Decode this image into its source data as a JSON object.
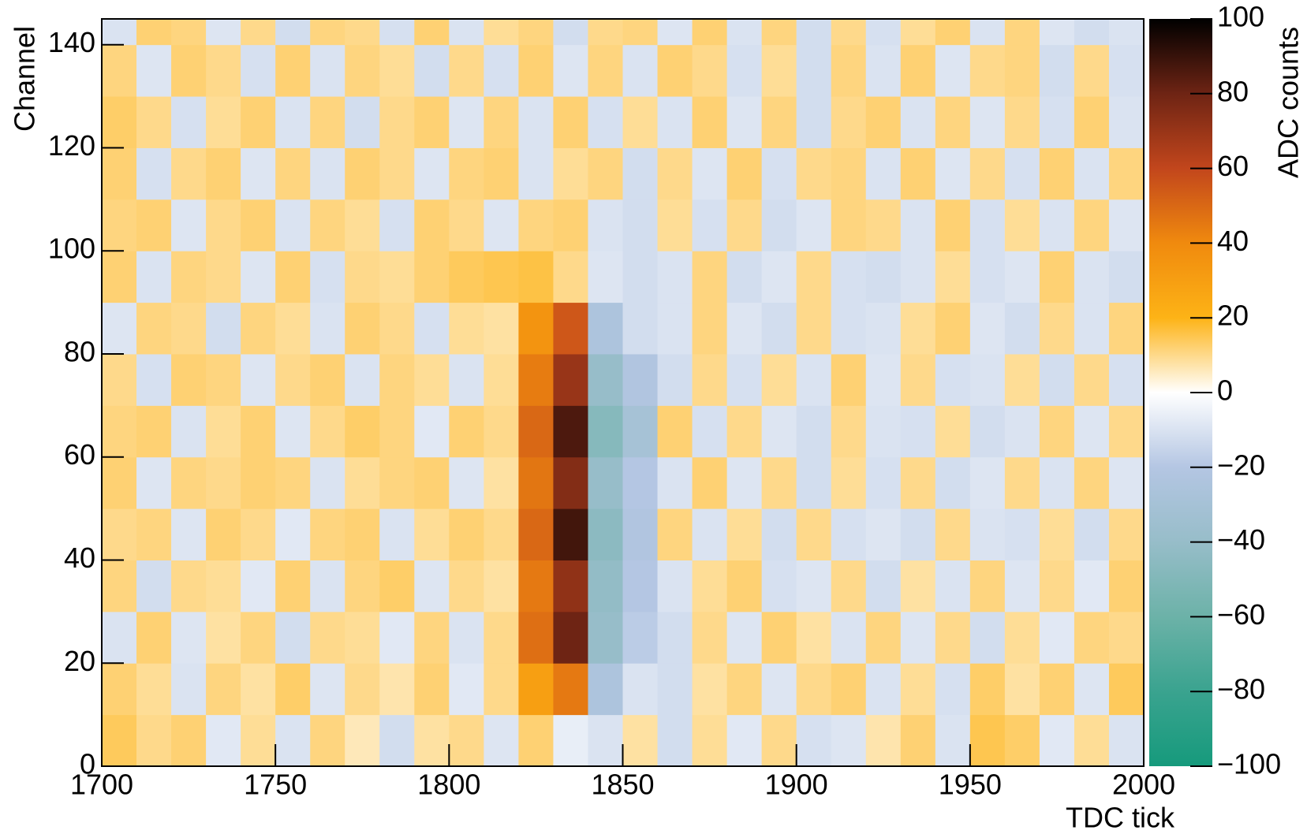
{
  "chart_data": {
    "type": "heatmap",
    "x_label": "TDC tick",
    "y_label": "Channel",
    "z_label": "ADC counts",
    "xbins": [
      1700,
      1710,
      1720,
      1730,
      1740,
      1750,
      1760,
      1770,
      1780,
      1790,
      1800,
      1810,
      1820,
      1830,
      1840,
      1850,
      1860,
      1870,
      1880,
      1890,
      1900,
      1910,
      1920,
      1930,
      1940,
      1950,
      1960,
      1970,
      1980,
      1990,
      2000
    ],
    "ybins": [
      0,
      10,
      20,
      30,
      40,
      50,
      60,
      70,
      80,
      90,
      100,
      110,
      120,
      130,
      140,
      145
    ],
    "z": [
      [
        14,
        10,
        12,
        -8,
        9,
        -10,
        11,
        6,
        -12,
        8,
        10,
        -9,
        12,
        -6,
        -10,
        8,
        -12,
        9,
        -8,
        10,
        -11,
        -9,
        7,
        12,
        -10,
        15,
        13,
        -8,
        9,
        -10
      ],
      [
        12,
        9,
        -10,
        11,
        8,
        13,
        -9,
        10,
        7,
        12,
        -8,
        10,
        30,
        45,
        -25,
        -10,
        -12,
        8,
        11,
        -9,
        10,
        12,
        -10,
        9,
        -11,
        13,
        8,
        12,
        -9,
        14
      ],
      [
        -10,
        12,
        -9,
        8,
        11,
        -12,
        10,
        9,
        -8,
        11,
        -10,
        10,
        48,
        80,
        -40,
        -18,
        -12,
        10,
        -9,
        12,
        8,
        -10,
        11,
        -9,
        10,
        -12,
        9,
        -8,
        11,
        10
      ],
      [
        11,
        -12,
        10,
        9,
        -8,
        12,
        -10,
        11,
        13,
        -9,
        10,
        8,
        45,
        72,
        -42,
        -20,
        -10,
        9,
        12,
        -11,
        -9,
        10,
        -12,
        8,
        -10,
        11,
        -9,
        10,
        -8,
        12
      ],
      [
        10,
        11,
        -9,
        12,
        10,
        -8,
        11,
        12,
        -10,
        9,
        12,
        10,
        50,
        88,
        -45,
        -22,
        11,
        -10,
        9,
        -12,
        10,
        -11,
        -9,
        -12,
        10,
        -10,
        -11,
        9,
        -12,
        10
      ],
      [
        12,
        -9,
        11,
        10,
        12,
        11,
        -10,
        9,
        11,
        12,
        -9,
        8,
        46,
        75,
        -40,
        -20,
        -10,
        12,
        -9,
        10,
        -12,
        9,
        -11,
        10,
        -12,
        -9,
        10,
        -10,
        11,
        -9
      ],
      [
        11,
        12,
        -10,
        9,
        12,
        -9,
        10,
        13,
        11,
        -8,
        12,
        10,
        50,
        86,
        -48,
        -30,
        12,
        -11,
        10,
        -9,
        -12,
        10,
        -10,
        -11,
        9,
        -12,
        -10,
        11,
        -9,
        10
      ],
      [
        10,
        -11,
        12,
        11,
        -9,
        10,
        12,
        -10,
        11,
        9,
        -10,
        9,
        44,
        70,
        -40,
        -22,
        -12,
        10,
        -11,
        9,
        -10,
        12,
        -9,
        10,
        -11,
        -10,
        9,
        -12,
        10,
        -11
      ],
      [
        -9,
        11,
        10,
        -12,
        11,
        9,
        -10,
        12,
        10,
        -11,
        9,
        8,
        35,
        55,
        -25,
        -12,
        -10,
        11,
        -9,
        -12,
        10,
        -11,
        -10,
        9,
        12,
        -9,
        -12,
        10,
        -10,
        11
      ],
      [
        12,
        -10,
        11,
        10,
        -9,
        12,
        -11,
        10,
        9,
        12,
        14,
        15,
        16,
        10,
        -9,
        -12,
        -10,
        11,
        -12,
        -9,
        10,
        -11,
        -12,
        -10,
        9,
        -11,
        -9,
        12,
        -10,
        -12
      ],
      [
        11,
        12,
        -9,
        10,
        12,
        -10,
        11,
        9,
        -11,
        12,
        10,
        -9,
        11,
        12,
        -10,
        -12,
        9,
        -11,
        10,
        -12,
        -9,
        11,
        10,
        -10,
        12,
        -11,
        9,
        -10,
        11,
        -9
      ],
      [
        12,
        -11,
        10,
        12,
        -9,
        11,
        -10,
        12,
        10,
        -9,
        11,
        12,
        -10,
        9,
        11,
        -12,
        10,
        -9,
        12,
        -11,
        10,
        11,
        -10,
        12,
        -9,
        10,
        -11,
        12,
        -10,
        11
      ],
      [
        13,
        10,
        -11,
        9,
        12,
        -10,
        11,
        -12,
        10,
        12,
        -9,
        11,
        -10,
        12,
        -11,
        9,
        -10,
        12,
        -9,
        11,
        -12,
        10,
        12,
        -10,
        11,
        -9,
        10,
        -11,
        12,
        -10
      ],
      [
        11,
        -9,
        12,
        10,
        -11,
        12,
        -10,
        11,
        9,
        -12,
        10,
        -11,
        12,
        -9,
        11,
        -10,
        12,
        10,
        -11,
        9,
        -12,
        11,
        -10,
        12,
        -9,
        10,
        11,
        -12,
        10,
        -11
      ],
      [
        -10,
        12,
        11,
        -9,
        10,
        -12,
        11,
        10,
        -11,
        12,
        -10,
        9,
        11,
        -12,
        10,
        11,
        -9,
        12,
        -10,
        11,
        -12,
        10,
        -11,
        9,
        12,
        -10,
        11,
        -9,
        -12,
        -10
      ]
    ],
    "xlim": [
      1700,
      2000
    ],
    "xticks": [
      1700,
      1750,
      1800,
      1850,
      1900,
      1950,
      2000
    ],
    "ylim": [
      0,
      145
    ],
    "yticks": [
      0,
      20,
      40,
      60,
      80,
      100,
      120,
      140
    ],
    "zlim": [
      -100,
      100
    ],
    "zticks": [
      {
        "value": -100,
        "label": "−100"
      },
      {
        "value": -80,
        "label": "−80"
      },
      {
        "value": -60,
        "label": "−60"
      },
      {
        "value": -40,
        "label": "−40"
      },
      {
        "value": -20,
        "label": "−20"
      },
      0,
      20,
      40,
      60,
      80,
      100
    ],
    "colorscale": [
      "#169a7c",
      "#3aa38f",
      "#6cb2a8",
      "#97bdc9",
      "#b4c6e3",
      "#ffffff",
      "#fdb316",
      "#f08a0e",
      "#c2461c",
      "#6e2414",
      "#000000"
    ],
    "grid": false
  }
}
